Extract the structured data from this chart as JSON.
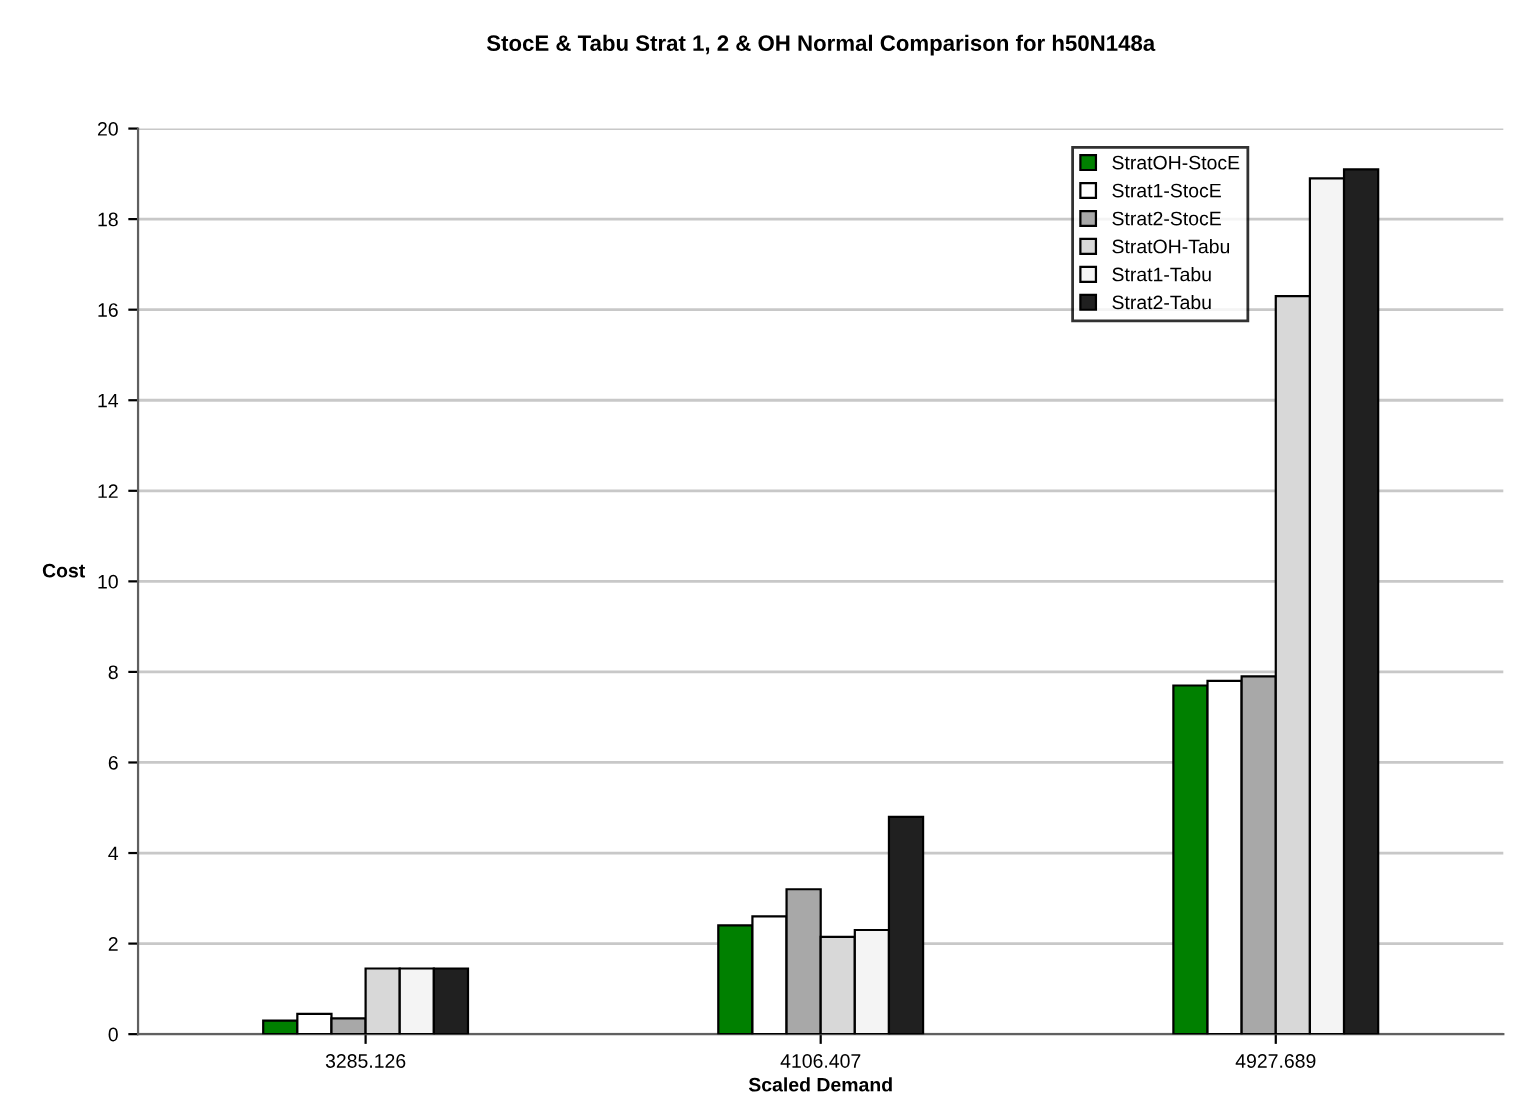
{
  "chart_data": {
    "type": "bar",
    "title": "StocE & Tabu Strat 1, 2 & OH Normal Comparison for h50N148a",
    "xlabel": "Scaled Demand",
    "ylabel": "Cost",
    "categories": [
      "3285.126",
      "4106.407",
      "4927.689"
    ],
    "series": [
      {
        "name": "StratOH-StocE",
        "color": "#008000",
        "values": [
          0.3,
          2.4,
          7.7
        ]
      },
      {
        "name": "Strat1-StocE",
        "color": "#ffffff",
        "values": [
          0.45,
          2.6,
          7.8
        ]
      },
      {
        "name": "Strat2-StocE",
        "color": "#a8a8a8",
        "values": [
          0.35,
          3.2,
          7.9
        ]
      },
      {
        "name": "StratOH-Tabu",
        "color": "#d8d8d8",
        "values": [
          1.45,
          2.15,
          16.3
        ]
      },
      {
        "name": "Strat1-Tabu",
        "color": "#f4f4f4",
        "values": [
          1.45,
          2.3,
          18.9
        ]
      },
      {
        "name": "Strat2-Tabu",
        "color": "#202020",
        "values": [
          1.45,
          4.8,
          19.1
        ]
      }
    ],
    "ylim": [
      0,
      20
    ],
    "yticks": [
      0,
      2,
      4,
      6,
      8,
      10,
      12,
      14,
      16,
      18,
      20
    ],
    "grid": "y",
    "legend": "top right"
  }
}
